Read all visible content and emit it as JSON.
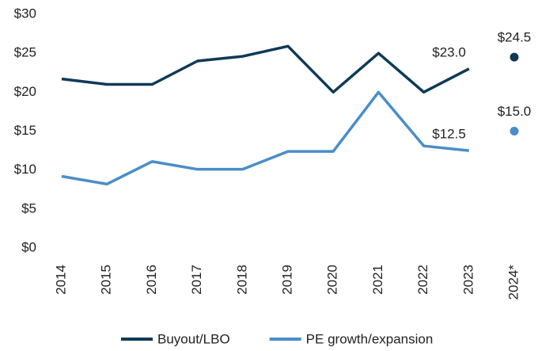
{
  "chart_data": {
    "type": "line",
    "categories": [
      "2014",
      "2015",
      "2016",
      "2017",
      "2018",
      "2019",
      "2020",
      "2021",
      "2022",
      "2023",
      "2024*"
    ],
    "projected_last": true,
    "series": [
      {
        "name": "Buyout/LBO",
        "color": "#0f3a57",
        "values": [
          21.7,
          21.0,
          21.0,
          24.0,
          24.6,
          25.9,
          20.0,
          25.0,
          20.0,
          23.0,
          24.5
        ],
        "value_labels": [
          null,
          null,
          null,
          null,
          null,
          null,
          null,
          null,
          null,
          "$23.0",
          "$24.5"
        ]
      },
      {
        "name": "PE growth/expansion",
        "color": "#4a8dc9",
        "values": [
          9.2,
          8.2,
          11.1,
          10.1,
          10.1,
          12.4,
          12.4,
          20.0,
          13.1,
          12.5,
          15.0
        ],
        "value_labels": [
          null,
          null,
          null,
          null,
          null,
          null,
          null,
          null,
          null,
          "$12.5",
          "$15.0"
        ]
      }
    ],
    "ylim": [
      0,
      30
    ],
    "yticks": [
      {
        "value": 0,
        "label": "$0"
      },
      {
        "value": 5,
        "label": "$5"
      },
      {
        "value": 10,
        "label": "$10"
      },
      {
        "value": 15,
        "label": "$15"
      },
      {
        "value": 20,
        "label": "$20"
      },
      {
        "value": 25,
        "label": "$25"
      },
      {
        "value": 30,
        "label": "$30"
      }
    ],
    "grid": false,
    "legend": "bottom"
  }
}
